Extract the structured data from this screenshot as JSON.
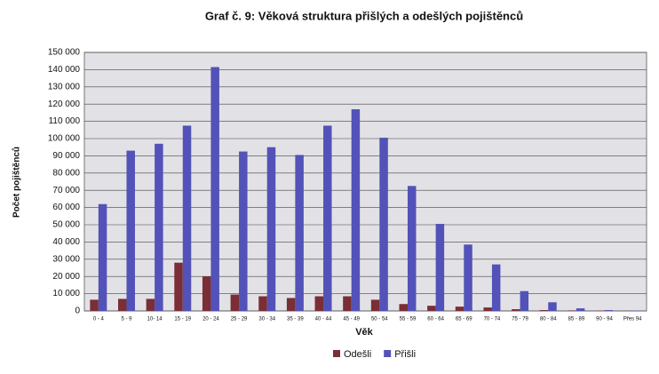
{
  "chart_data": {
    "type": "bar",
    "title": "Graf č. 9: Věková struktura přišlých a odešlých pojištěnců",
    "x_label": "Věk",
    "y_label": "Počet pojištěnců",
    "categories": [
      "0 - 4",
      "5 - 9",
      "10- 14",
      "15 - 19",
      "20 - 24",
      "25 - 29",
      "30 - 34",
      "35 - 39",
      "40 - 44",
      "45 - 49",
      "50 - 54",
      "55 - 59",
      "60 - 64",
      "65 - 69",
      "70 - 74",
      "75 - 79",
      "80 - 84",
      "85 - 89",
      "90 - 94",
      "Přes 94"
    ],
    "series": [
      {
        "name": "Odešli",
        "color": "#7a2e35",
        "values": [
          6500,
          7000,
          7000,
          28000,
          20000,
          9500,
          8500,
          7500,
          8500,
          8500,
          6500,
          4000,
          3000,
          2500,
          2000,
          1000,
          500,
          300,
          200,
          100
        ]
      },
      {
        "name": "Přišli",
        "color": "#5252b8",
        "values": [
          62000,
          93000,
          97000,
          107500,
          141500,
          92500,
          95000,
          90500,
          107500,
          117000,
          100500,
          72500,
          50500,
          38500,
          27000,
          11500,
          5000,
          1500,
          500,
          200
        ]
      }
    ],
    "ylim": [
      0,
      150000
    ],
    "yticks": [
      0,
      {
        "value": 10000,
        "label": "10 000"
      },
      {
        "value": 20000,
        "label": "20 000"
      },
      {
        "value": 30000,
        "label": "30 000"
      },
      {
        "value": 40000,
        "label": "40 000"
      },
      {
        "value": 50000,
        "label": "50 000"
      },
      {
        "value": 60000,
        "label": "60 000"
      },
      {
        "value": 70000,
        "label": "70 000"
      },
      {
        "value": 80000,
        "label": "80 000"
      },
      {
        "value": 90000,
        "label": "90 000"
      },
      {
        "value": 100000,
        "label": "100 000"
      },
      {
        "value": 110000,
        "label": "110 000"
      },
      {
        "value": 120000,
        "label": "120 000"
      },
      {
        "value": 130000,
        "label": "130 000"
      },
      {
        "value": 140000,
        "label": "140 000"
      },
      {
        "value": 150000,
        "label": "150 000"
      }
    ],
    "grid": true,
    "legend": "bottom"
  }
}
